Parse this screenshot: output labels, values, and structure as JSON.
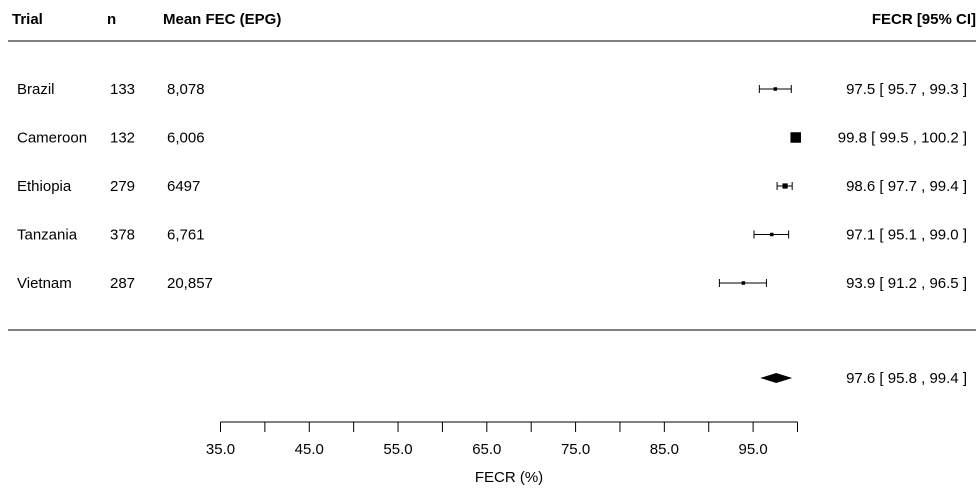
{
  "chart_data": {
    "type": "forest",
    "columns": {
      "trial": "Trial",
      "n": "n",
      "mean_fec": "Mean FEC (EPG)",
      "fecr_ci": "FECR [95% CI]"
    },
    "rows": [
      {
        "trial": "Brazil",
        "n": "133",
        "mean_fec": "8,078",
        "estimate": 97.5,
        "lower": 95.7,
        "upper": 99.3,
        "label": "97.5 [ 95.7 ,  99.3 ]"
      },
      {
        "trial": "Cameroon",
        "n": "132",
        "mean_fec": "6,006",
        "estimate": 99.8,
        "lower": 99.5,
        "upper": 100.2,
        "label": "99.8 [ 99.5 , 100.2 ]"
      },
      {
        "trial": "Ethiopia",
        "n": "279",
        "mean_fec": "6497",
        "estimate": 98.6,
        "lower": 97.7,
        "upper": 99.4,
        "label": "98.6 [ 97.7 ,  99.4 ]"
      },
      {
        "trial": "Tanzania",
        "n": "378",
        "mean_fec": "6,761",
        "estimate": 97.1,
        "lower": 95.1,
        "upper": 99.0,
        "label": "97.1 [ 95.1 ,  99.0 ]"
      },
      {
        "trial": "Vietnam",
        "n": "287",
        "mean_fec": "20,857",
        "estimate": 93.9,
        "lower": 91.2,
        "upper": 96.5,
        "label": "93.9 [ 91.2 ,  96.5 ]"
      }
    ],
    "summary": {
      "estimate": 97.6,
      "lower": 95.8,
      "upper": 99.4,
      "label": "97.6 [ 95.8 , 99.4 ]"
    },
    "x_axis": {
      "label": "FECR (%)",
      "range": [
        35,
        100
      ],
      "minor_ticks": [
        35,
        40,
        45,
        50,
        55,
        60,
        65,
        70,
        75,
        80,
        85,
        90,
        95,
        100
      ],
      "labeled_ticks": [
        {
          "value": 35,
          "text": "35.0"
        },
        {
          "value": 45,
          "text": "45.0"
        },
        {
          "value": 55,
          "text": "55.0"
        },
        {
          "value": 65,
          "text": "65.0"
        },
        {
          "value": 75,
          "text": "75.0"
        },
        {
          "value": 85,
          "text": "85.0"
        },
        {
          "value": 95,
          "text": "95.0"
        }
      ]
    },
    "colors": {
      "ink": "#000000",
      "background": "#ffffff"
    }
  }
}
